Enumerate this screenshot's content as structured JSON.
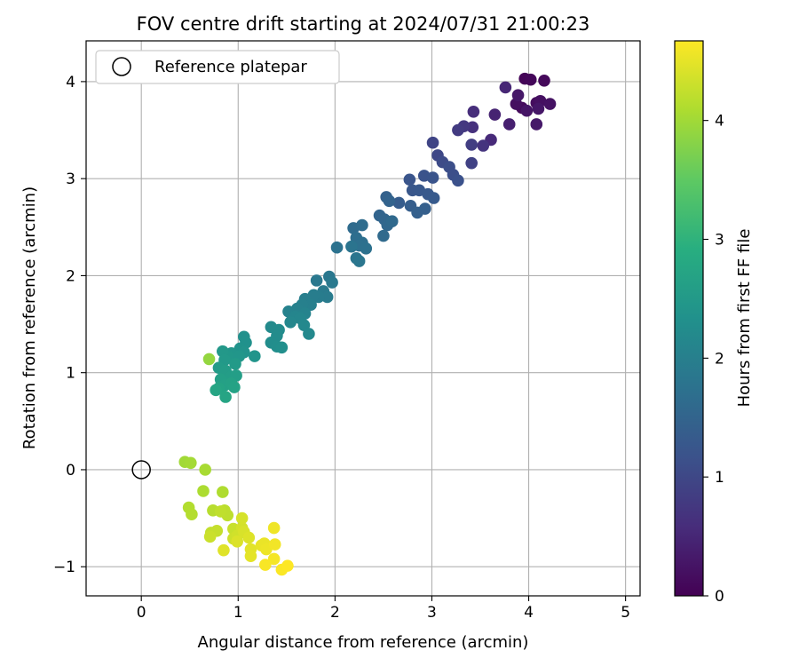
{
  "chart_data": {
    "type": "scatter",
    "title": "FOV centre drift starting at 2024/07/31 21:00:23",
    "xlabel": "Angular distance from reference (arcmin)",
    "ylabel": "Rotation from reference (arcmin)",
    "xlim": [
      -0.57,
      5.15
    ],
    "ylim": [
      -1.3,
      4.42
    ],
    "xticks": [
      0,
      1,
      2,
      3,
      4,
      5
    ],
    "yticks": [
      -1,
      0,
      1,
      2,
      3,
      4
    ],
    "xtick_labels": [
      "0",
      "1",
      "2",
      "3",
      "4",
      "5"
    ],
    "ytick_labels": [
      "−1",
      "0",
      "1",
      "2",
      "3",
      "4"
    ],
    "grid": true,
    "legend": {
      "position": "top-left",
      "entries": [
        "Reference platepar"
      ]
    },
    "reference_point": {
      "x": 0,
      "y": 0,
      "label": "Reference platepar"
    },
    "colorbar": {
      "label": "Hours from first FF file",
      "range": [
        0,
        4.67
      ],
      "ticks": [
        0,
        1,
        2,
        3,
        4
      ],
      "tick_labels": [
        "0",
        "1",
        "2",
        "3",
        "4"
      ],
      "colormap": "viridis"
    },
    "points": [
      [
        3.96,
        4.03,
        0.05
      ],
      [
        4.02,
        4.02,
        0.08
      ],
      [
        4.16,
        4.01,
        0.1
      ],
      [
        3.93,
        3.73,
        0.12
      ],
      [
        4.08,
        3.78,
        0.15
      ],
      [
        3.87,
        3.77,
        0.18
      ],
      [
        4.12,
        3.8,
        0.2
      ],
      [
        4.22,
        3.77,
        0.22
      ],
      [
        3.98,
        3.7,
        0.25
      ],
      [
        4.1,
        3.72,
        0.28
      ],
      [
        3.89,
        3.86,
        0.3
      ],
      [
        4.08,
        3.56,
        0.32
      ],
      [
        3.8,
        3.56,
        0.4
      ],
      [
        3.65,
        3.66,
        0.45
      ],
      [
        3.76,
        3.94,
        0.5
      ],
      [
        3.61,
        3.4,
        0.55
      ],
      [
        3.43,
        3.69,
        0.6
      ],
      [
        3.42,
        3.53,
        0.65
      ],
      [
        3.53,
        3.34,
        0.7
      ],
      [
        3.33,
        3.54,
        0.75
      ],
      [
        3.27,
        3.5,
        0.8
      ],
      [
        3.41,
        3.35,
        0.85
      ],
      [
        3.41,
        3.16,
        0.9
      ],
      [
        3.01,
        3.37,
        0.95
      ],
      [
        3.06,
        3.24,
        1.0
      ],
      [
        3.11,
        3.17,
        1.05
      ],
      [
        3.18,
        3.12,
        1.1
      ],
      [
        3.22,
        3.04,
        1.12
      ],
      [
        3.27,
        2.98,
        1.15
      ],
      [
        2.92,
        3.03,
        1.18
      ],
      [
        3.01,
        3.01,
        1.2
      ],
      [
        2.77,
        2.99,
        1.22
      ],
      [
        2.8,
        2.88,
        1.25
      ],
      [
        2.87,
        2.88,
        1.28
      ],
      [
        2.96,
        2.84,
        1.3
      ],
      [
        3.02,
        2.8,
        1.32
      ],
      [
        2.66,
        2.75,
        1.35
      ],
      [
        2.78,
        2.72,
        1.38
      ],
      [
        2.93,
        2.69,
        1.4
      ],
      [
        2.85,
        2.65,
        1.42
      ],
      [
        2.53,
        2.81,
        1.45
      ],
      [
        2.56,
        2.77,
        1.48
      ],
      [
        2.46,
        2.62,
        1.5
      ],
      [
        2.51,
        2.58,
        1.52
      ],
      [
        2.54,
        2.52,
        1.55
      ],
      [
        2.59,
        2.56,
        1.58
      ],
      [
        2.5,
        2.41,
        1.6
      ],
      [
        2.19,
        2.49,
        1.62
      ],
      [
        2.28,
        2.52,
        1.65
      ],
      [
        2.22,
        2.39,
        1.68
      ],
      [
        2.28,
        2.34,
        1.7
      ],
      [
        2.25,
        2.31,
        1.72
      ],
      [
        2.32,
        2.28,
        1.74
      ],
      [
        2.02,
        2.29,
        1.76
      ],
      [
        2.17,
        2.3,
        1.78
      ],
      [
        2.22,
        2.18,
        1.8
      ],
      [
        2.25,
        2.15,
        1.82
      ],
      [
        1.94,
        1.99,
        1.84
      ],
      [
        1.81,
        1.95,
        1.86
      ],
      [
        1.97,
        1.93,
        1.88
      ],
      [
        1.88,
        1.84,
        1.9
      ],
      [
        1.92,
        1.78,
        1.92
      ],
      [
        1.83,
        1.78,
        1.94
      ],
      [
        1.78,
        1.8,
        1.96
      ],
      [
        1.69,
        1.76,
        1.98
      ],
      [
        1.75,
        1.7,
        2.0
      ],
      [
        1.66,
        1.7,
        2.02
      ],
      [
        1.61,
        1.66,
        2.04
      ],
      [
        1.52,
        1.63,
        2.06
      ],
      [
        1.69,
        1.61,
        2.08
      ],
      [
        1.59,
        1.58,
        2.1
      ],
      [
        1.64,
        1.56,
        2.12
      ],
      [
        1.54,
        1.52,
        2.14
      ],
      [
        1.68,
        1.49,
        2.16
      ],
      [
        1.73,
        1.4,
        2.18
      ],
      [
        1.34,
        1.47,
        2.2
      ],
      [
        1.42,
        1.44,
        2.22
      ],
      [
        1.4,
        1.38,
        2.24
      ],
      [
        1.34,
        1.31,
        2.26
      ],
      [
        1.4,
        1.27,
        2.28
      ],
      [
        1.45,
        1.26,
        2.3
      ],
      [
        1.06,
        1.37,
        2.32
      ],
      [
        1.08,
        1.31,
        2.34
      ],
      [
        1.02,
        1.25,
        2.36
      ],
      [
        1.06,
        1.21,
        2.38
      ],
      [
        1.17,
        1.17,
        2.4
      ],
      [
        0.93,
        1.2,
        2.42
      ],
      [
        1.01,
        1.17,
        2.44
      ],
      [
        0.89,
        1.17,
        2.46
      ],
      [
        0.84,
        1.22,
        2.48
      ],
      [
        0.86,
        1.13,
        2.5
      ],
      [
        0.97,
        1.09,
        2.52
      ],
      [
        0.8,
        1.05,
        2.54
      ],
      [
        0.87,
        1.02,
        2.56
      ],
      [
        0.93,
        0.96,
        2.58
      ],
      [
        0.98,
        0.97,
        2.6
      ],
      [
        0.82,
        0.93,
        2.62
      ],
      [
        0.86,
        0.87,
        2.64
      ],
      [
        0.93,
        0.89,
        2.66
      ],
      [
        0.96,
        0.85,
        2.68
      ],
      [
        0.8,
        0.84,
        2.7
      ],
      [
        0.87,
        0.75,
        2.72
      ],
      [
        0.77,
        0.82,
        2.74
      ],
      [
        0.7,
        1.14,
        3.9
      ],
      [
        0.45,
        0.08,
        4.0
      ],
      [
        0.51,
        0.07,
        4.02
      ],
      [
        0.66,
        0.0,
        4.05
      ],
      [
        0.64,
        -0.22,
        4.08
      ],
      [
        0.84,
        -0.23,
        4.1
      ],
      [
        0.49,
        -0.39,
        4.12
      ],
      [
        0.52,
        -0.46,
        4.14
      ],
      [
        0.74,
        -0.42,
        4.16
      ],
      [
        0.86,
        -0.42,
        4.18
      ],
      [
        0.89,
        -0.47,
        4.2
      ],
      [
        0.82,
        -0.43,
        4.22
      ],
      [
        0.72,
        -0.65,
        4.24
      ],
      [
        0.78,
        -0.63,
        4.26
      ],
      [
        0.95,
        -0.61,
        4.28
      ],
      [
        0.71,
        -0.69,
        4.3
      ],
      [
        0.95,
        -0.71,
        4.32
      ],
      [
        0.99,
        -0.68,
        4.34
      ],
      [
        1.04,
        -0.6,
        4.36
      ],
      [
        1.04,
        -0.5,
        4.38
      ],
      [
        1.06,
        -0.64,
        4.4
      ],
      [
        0.99,
        -0.74,
        4.42
      ],
      [
        1.11,
        -0.7,
        4.44
      ],
      [
        0.85,
        -0.83,
        4.45
      ],
      [
        1.13,
        -0.82,
        4.47
      ],
      [
        1.13,
        -0.89,
        4.49
      ],
      [
        1.24,
        -0.78,
        4.51
      ],
      [
        1.27,
        -0.76,
        4.53
      ],
      [
        1.29,
        -0.82,
        4.55
      ],
      [
        1.37,
        -0.6,
        4.57
      ],
      [
        1.38,
        -0.77,
        4.59
      ],
      [
        1.37,
        -0.92,
        4.61
      ],
      [
        1.28,
        -0.98,
        4.63
      ],
      [
        1.45,
        -1.03,
        4.65
      ],
      [
        1.51,
        -0.99,
        4.67
      ]
    ]
  }
}
